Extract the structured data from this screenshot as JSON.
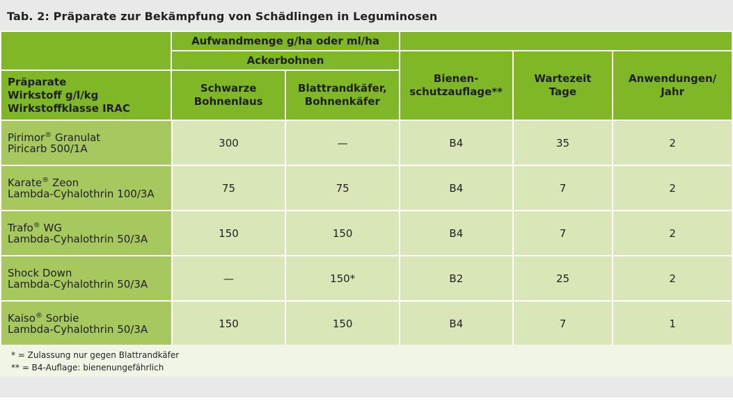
{
  "title": "Tab. 2: Präparate zur Bekämpfung von Schädlingen in Leguminosen",
  "header": {
    "group": "Aufwandmenge g/ha oder ml/ha",
    "subgroup": "Ackerbohnen",
    "col0": [
      "Präparate",
      "Wirkstoff g/l/kg",
      "Wirkstoffklasse IRAC"
    ],
    "col1": [
      "Schwarze",
      "Bohnenlaus"
    ],
    "col2": [
      "Blattrandkäfer,",
      "Bohnenkäfer"
    ],
    "col3": [
      "Bienen-",
      "schutzauflage**"
    ],
    "col4": [
      "Wartezeit",
      "Tage"
    ],
    "col5": [
      "Anwendungen/",
      "Jahr"
    ]
  },
  "reg_mark": "®",
  "rows": [
    {
      "product": "Pirimor",
      "reg": "®",
      "suffix": " Granulat",
      "active": "Piricarb 500/1A",
      "c1": "300",
      "c2": "—",
      "c3": "B4",
      "c4": "35",
      "c5": "2"
    },
    {
      "product": "Karate",
      "reg": "®",
      "suffix": " Zeon",
      "active": "Lambda-Cyhalothrin 100/3A",
      "c1": "75",
      "c2": "75",
      "c3": "B4",
      "c4": "7",
      "c5": "2"
    },
    {
      "product": "Trafo",
      "reg": "®",
      "suffix": " WG",
      "active": "Lambda-Cyhalothrin 50/3A",
      "c1": "150",
      "c2": "150",
      "c3": "B4",
      "c4": "7",
      "c5": "2"
    },
    {
      "product": "Shock Down",
      "reg": "",
      "suffix": "",
      "active": "Lambda-Cyhalothrin 50/3A",
      "c1": "—",
      "c2": "150*",
      "c3": "B2",
      "c4": "25",
      "c5": "2"
    },
    {
      "product": "Kaiso",
      "reg": "®",
      "suffix": " Sorbie",
      "active": "Lambda-Cyhalothrin 50/3A",
      "c1": "150",
      "c2": "150",
      "c3": "B4",
      "c4": "7",
      "c5": "1"
    }
  ],
  "footnotes": [
    "* = Zulassung nur gegen Blattrandkäfer",
    "** = B4-Auflage: bienenungefährlich"
  ]
}
